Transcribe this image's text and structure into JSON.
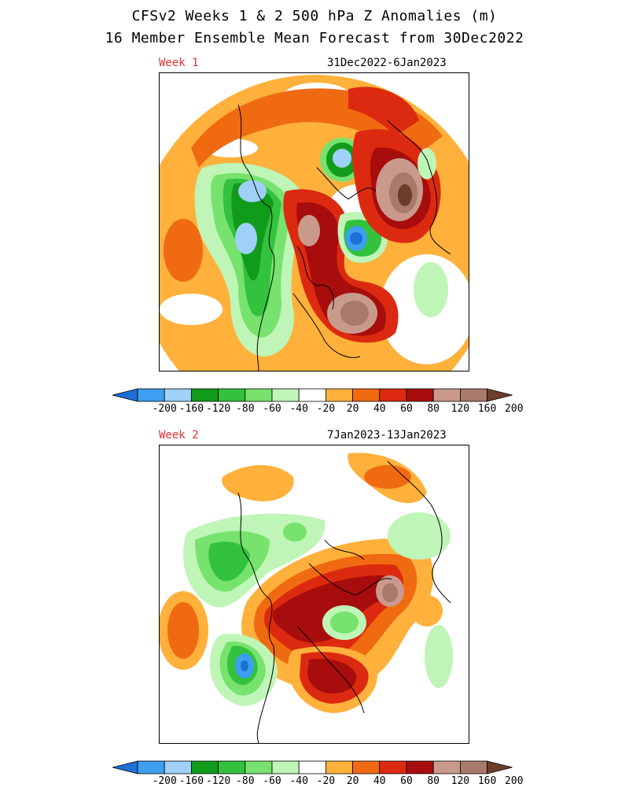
{
  "header": {
    "title_line1": "CFSv2 Weeks 1 & 2 500 hPa Z Anomalies (m)",
    "title_line2": "16 Member Ensemble Mean Forecast from 30Dec2022"
  },
  "panels": [
    {
      "week_label": "Week 1",
      "date_range": "31Dec2022-6Jan2023"
    },
    {
      "week_label": "Week 2",
      "date_range": "7Jan2023-13Jan2023"
    }
  ],
  "colorbar": {
    "labels": [
      "-200",
      "-160",
      "-120",
      "-80",
      "-60",
      "-40",
      "-20",
      "20",
      "40",
      "60",
      "80",
      "120",
      "160",
      "200"
    ],
    "colors": [
      "#1e6fd6",
      "#3d9ff0",
      "#9ed0f8",
      "#119b1b",
      "#33c23d",
      "#77e26d",
      "#bff5b7",
      "#ffffff",
      "#ffb13b",
      "#f06a12",
      "#dc2a10",
      "#a80d0d",
      "#c99a8c",
      "#a87a6c",
      "#6e3c2a"
    ]
  },
  "colors": {
    "week_label": "#e03030"
  }
}
